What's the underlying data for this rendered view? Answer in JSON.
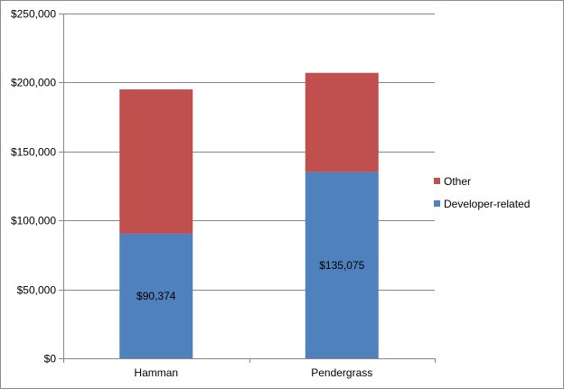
{
  "chart_data": {
    "type": "bar",
    "stacked": true,
    "categories": [
      "Hamman",
      "Pendergrass"
    ],
    "series": [
      {
        "name": "Developer-related",
        "values": [
          90374,
          135075
        ],
        "color": "#4f81bd",
        "data_labels": [
          "$90,374",
          "$135,075"
        ]
      },
      {
        "name": "Other",
        "values": [
          104626,
          71925
        ],
        "color": "#c0504d"
      }
    ],
    "ylim": [
      0,
      250000
    ],
    "yticks": [
      0,
      50000,
      100000,
      150000,
      200000,
      250000
    ],
    "ytick_labels": [
      "$0",
      "$50,000",
      "$100,000",
      "$150,000",
      "$200,000",
      "$250,000"
    ],
    "grid": true,
    "legend_position": "right",
    "legend_order": [
      "Other",
      "Developer-related"
    ]
  }
}
